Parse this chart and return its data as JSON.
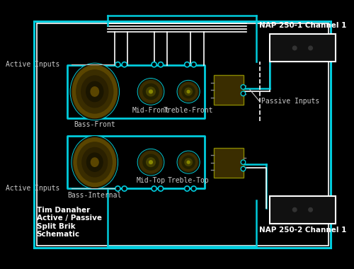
{
  "bg_color": "#000000",
  "cyan": "#00CCDD",
  "white": "#FFFFFF",
  "dark_brown": "#4a3800",
  "speaker_outer": "#6b5200",
  "speaker_inner": "#2a1e00",
  "dark_gray": "#222222",
  "label_color": "#CCCCCC",
  "amp_bg": "#333300",
  "title_color": "#FFFFFF",
  "title_lines": [
    "Tim Danaher",
    "Active / Passive",
    "Split Brik",
    "Schematic"
  ],
  "nap1_label": "NAP 250-1 Channel 1",
  "nap2_label": "NAP 250-2 Channel 1",
  "passive_label": "Passive Inputs",
  "active_label_top": "Active Inputs",
  "active_label_bot": "Active Inputs",
  "speaker_labels_top": [
    "Bass-Front",
    "Mid-Front",
    "Treble-Front"
  ],
  "speaker_labels_bot": [
    "Bass-Internal",
    "Mid-Top",
    "Treble-Top"
  ]
}
